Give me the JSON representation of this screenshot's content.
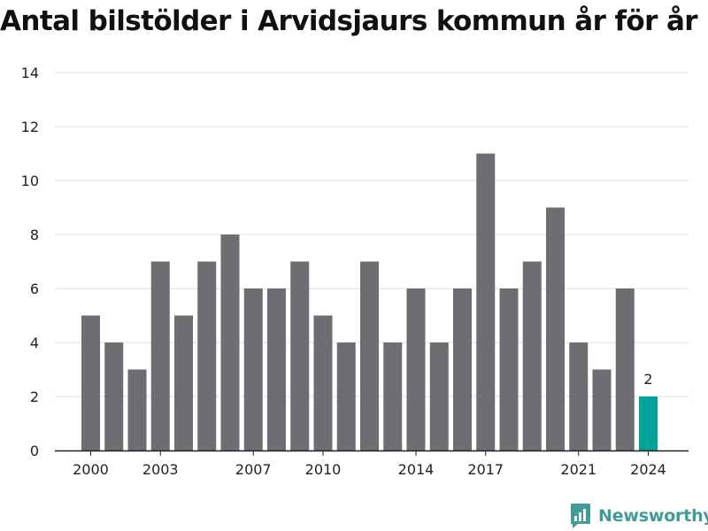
{
  "chart_data": {
    "type": "bar",
    "title": "Antal bilstölder i Arvidsjaurs kommun år för år",
    "xlabel": "",
    "ylabel": "",
    "categories": [
      2000,
      2001,
      2002,
      2003,
      2004,
      2005,
      2006,
      2007,
      2008,
      2009,
      2010,
      2011,
      2012,
      2013,
      2014,
      2015,
      2016,
      2017,
      2018,
      2019,
      2020,
      2021,
      2022,
      2023,
      2024
    ],
    "values": [
      5,
      4,
      3,
      7,
      5,
      7,
      8,
      6,
      6,
      7,
      5,
      4,
      7,
      4,
      6,
      4,
      6,
      11,
      6,
      7,
      9,
      4,
      3,
      6,
      2
    ],
    "ylim": [
      0,
      14
    ],
    "y_ticks": [
      0,
      2,
      4,
      6,
      8,
      10,
      12,
      14
    ],
    "x_tick_labels": [
      "2000",
      "2003",
      "2007",
      "2010",
      "2014",
      "2017",
      "2021",
      "2024"
    ],
    "highlight": {
      "category": 2024,
      "label": "2"
    },
    "grid": true,
    "colors": {
      "bar": "#6d6d72",
      "highlight": "#00a29a",
      "grid": "#dcdcdc",
      "axis": "#222222",
      "text": "#222222"
    }
  },
  "brand": {
    "name": "Newsworthy",
    "icon": "newsworthy-logo-icon",
    "color": "#3f9c96"
  }
}
